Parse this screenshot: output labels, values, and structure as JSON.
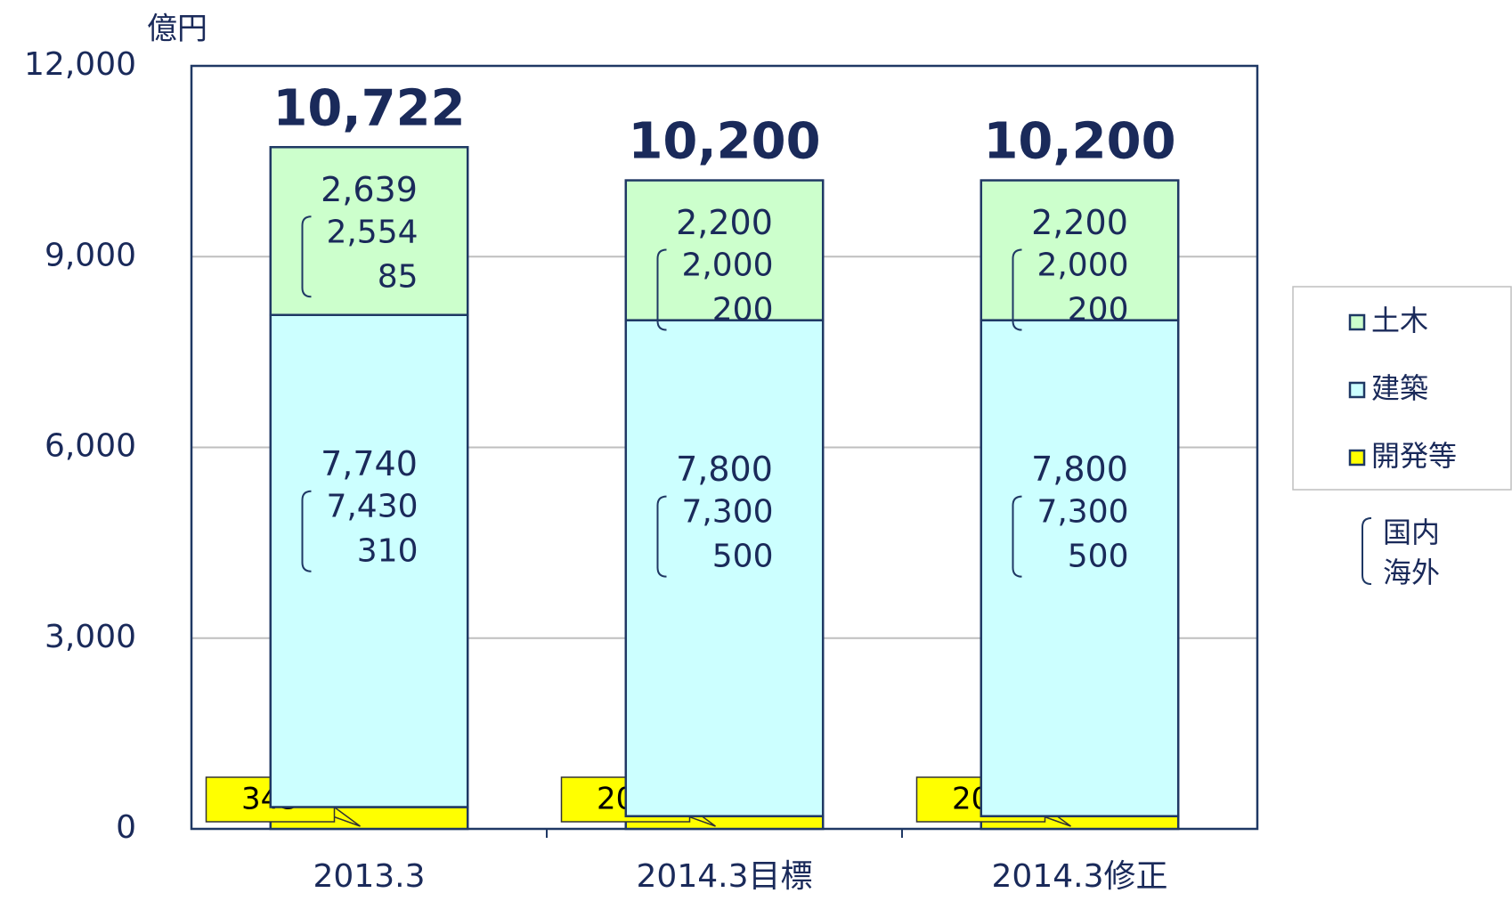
{
  "chart_data": {
    "type": "stacked_bar",
    "unit_label": "億円",
    "categories": [
      "2013.3",
      "2014.3目標",
      "2014.3修正"
    ],
    "series": [
      {
        "name": "開発等",
        "color": "#ffff00",
        "values": [
          343,
          200,
          200
        ]
      },
      {
        "name": "建築",
        "color": "#ccffff",
        "values": [
          7740,
          7800,
          7800
        ],
        "value_labels": [
          "7,740",
          "7,800",
          "7,800"
        ],
        "breakdown": [
          [
            "7,430",
            "310"
          ],
          [
            "7,300",
            "500"
          ],
          [
            "7,300",
            "500"
          ]
        ]
      },
      {
        "name": "土木",
        "color": "#ccffcc",
        "values": [
          2639,
          2200,
          2200
        ],
        "value_labels": [
          "2,639",
          "2,200",
          "2,200"
        ],
        "breakdown": [
          [
            "2,554",
            "85"
          ],
          [
            "2,000",
            "200"
          ],
          [
            "2,000",
            "200"
          ]
        ]
      }
    ],
    "total_labels": [
      "10,722",
      "10,200",
      "10,200"
    ],
    "breakdown_legend": [
      "国内",
      "海外"
    ],
    "ylim": [
      0,
      12000
    ],
    "yticks": [
      0,
      {
        "value": 3000,
        "label": "3,000"
      },
      {
        "value": 6000,
        "label": "6,000"
      },
      {
        "value": 9000,
        "label": "9,000"
      },
      {
        "value": 12000,
        "label": "12,000"
      }
    ],
    "grid": true
  }
}
